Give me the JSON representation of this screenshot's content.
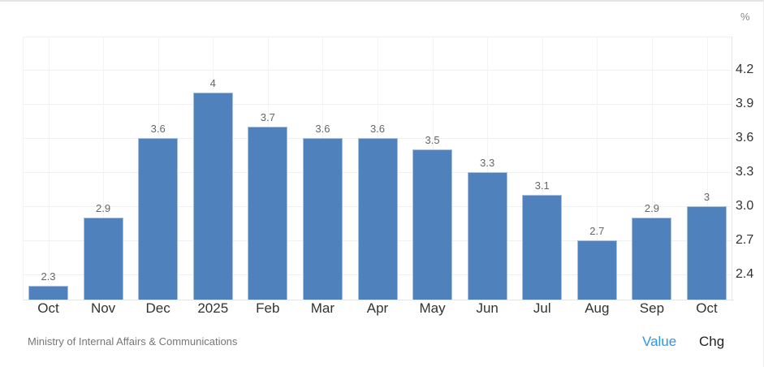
{
  "chart_data": {
    "type": "bar",
    "title": "",
    "xlabel": "",
    "ylabel": "%",
    "categories": [
      "Oct",
      "Nov",
      "Dec",
      "2025",
      "Feb",
      "Mar",
      "Apr",
      "May",
      "Jun",
      "Jul",
      "Aug",
      "Sep",
      "Oct"
    ],
    "values": [
      2.3,
      2.9,
      3.6,
      4,
      3.7,
      3.6,
      3.6,
      3.5,
      3.3,
      3.1,
      2.7,
      2.9,
      3
    ],
    "value_labels": [
      "2.3",
      "2.9",
      "3.6",
      "4",
      "3.7",
      "3.6",
      "3.6",
      "3.5",
      "3.3",
      "3.1",
      "2.7",
      "2.9",
      "3"
    ],
    "y_ticks": [
      "4.2",
      "3.9",
      "3.6",
      "3.3",
      "3.0",
      "2.7",
      "2.4"
    ],
    "ylim": [
      2.18,
      4.49
    ],
    "y_axis_position": "right",
    "grid": true,
    "legend": null,
    "bar_color": "#4f81bd"
  },
  "unit_label": "%",
  "footer": {
    "source": "Ministry of Internal Affairs & Communications",
    "toggles": [
      {
        "label": "Value",
        "active": true,
        "color": "#2e95e6"
      },
      {
        "label": "Chg",
        "active": false,
        "color": "#222222"
      }
    ]
  }
}
